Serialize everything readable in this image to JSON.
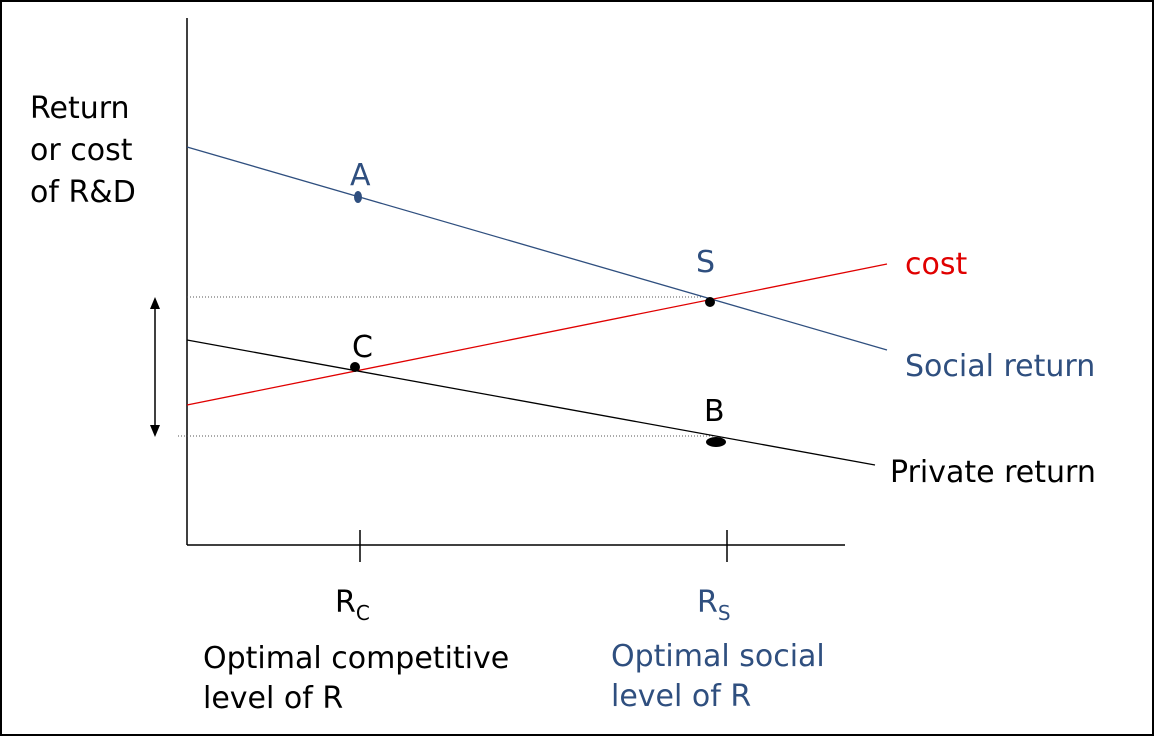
{
  "axis_label": [
    "Return",
    "or cost",
    "of R&D"
  ],
  "points": [
    {
      "label": "A"
    },
    {
      "label": "S"
    },
    {
      "label": "C"
    },
    {
      "label": "B"
    }
  ],
  "lines": [
    {
      "label": "cost"
    },
    {
      "label": "Social return"
    },
    {
      "label": "Private return"
    }
  ],
  "x_labels": [
    {
      "main": "R",
      "sub": "C",
      "caption": [
        "Optimal competitive",
        "level of R"
      ]
    },
    {
      "main": "R",
      "sub": "S",
      "caption": [
        "Optimal social",
        "level of R"
      ]
    }
  ]
}
